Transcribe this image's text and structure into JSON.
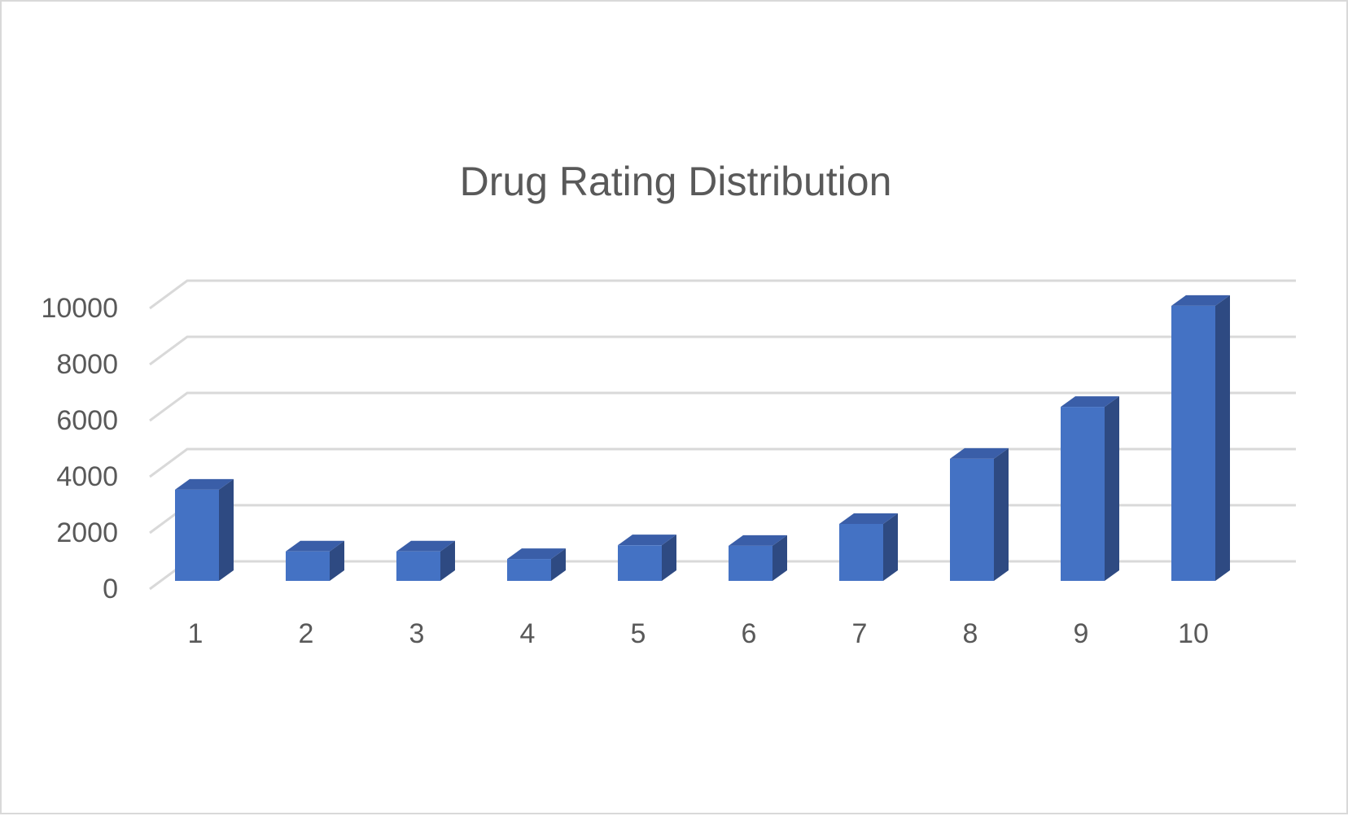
{
  "chart_data": {
    "type": "bar",
    "title": "Drug Rating Distribution",
    "xlabel": "",
    "ylabel": "",
    "categories": [
      "1",
      "2",
      "3",
      "4",
      "5",
      "6",
      "7",
      "8",
      "9",
      "10"
    ],
    "values": [
      3250,
      1050,
      1050,
      780,
      1270,
      1250,
      2030,
      4350,
      6200,
      9800
    ],
    "ylim": [
      0,
      10000
    ],
    "yticks": [
      "0",
      "2000",
      "4000",
      "6000",
      "8000",
      "10000"
    ],
    "grid": true,
    "style": "3d-column",
    "colors": {
      "front": "#4472c4",
      "side": "#2e4a82",
      "top": "#3a5ea8",
      "grid": "#d9d9d9",
      "text": "#595959"
    }
  }
}
